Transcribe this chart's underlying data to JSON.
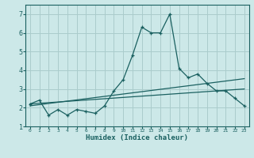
{
  "xlabel": "Humidex (Indice chaleur)",
  "ylabel": "",
  "bg_color": "#cce8e8",
  "grid_color": "#aacccc",
  "line_color": "#1a6060",
  "xlim": [
    -0.5,
    23.5
  ],
  "ylim": [
    1,
    7.5
  ],
  "xticks": [
    0,
    1,
    2,
    3,
    4,
    5,
    6,
    7,
    8,
    9,
    10,
    11,
    12,
    13,
    14,
    15,
    16,
    17,
    18,
    19,
    20,
    21,
    22,
    23
  ],
  "yticks": [
    1,
    2,
    3,
    4,
    5,
    6,
    7
  ],
  "series1_x": [
    0,
    1,
    2,
    3,
    4,
    5,
    6,
    7,
    8,
    9,
    10,
    11,
    12,
    13,
    14,
    15,
    16,
    17,
    18,
    19,
    20,
    21,
    22,
    23
  ],
  "series1_y": [
    2.2,
    2.4,
    1.6,
    1.9,
    1.6,
    1.9,
    1.8,
    1.7,
    2.1,
    2.9,
    3.5,
    4.8,
    6.3,
    6.0,
    6.0,
    7.0,
    4.1,
    3.6,
    3.8,
    3.3,
    2.9,
    2.9,
    2.5,
    2.1
  ],
  "series2_x": [
    0,
    23
  ],
  "series2_y": [
    2.1,
    3.55
  ],
  "series3_x": [
    0,
    23
  ],
  "series3_y": [
    2.2,
    3.0
  ]
}
